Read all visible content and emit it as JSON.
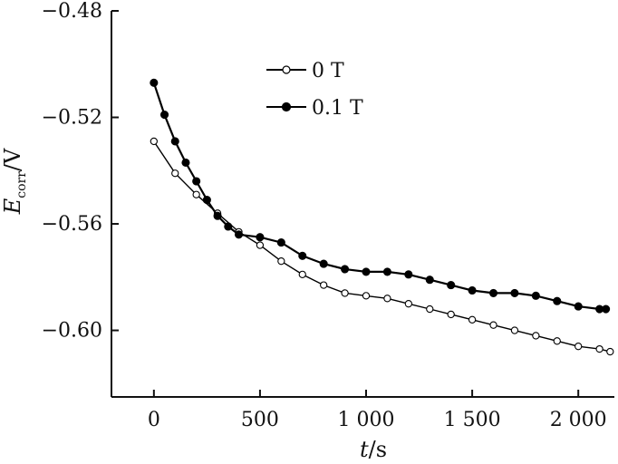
{
  "chart_data": {
    "type": "scatter",
    "xlabel": {
      "var": "t",
      "unit": "/s"
    },
    "ylabel": {
      "var": "E",
      "sub": "corr",
      "unit": "/V"
    },
    "xlim": [
      -200,
      2170
    ],
    "ylim": [
      -0.625,
      -0.48
    ],
    "xticks": [
      0,
      500,
      1000,
      1500,
      2000
    ],
    "xtick_labels": [
      "0",
      "500",
      "1 000",
      "1 500",
      "2 000"
    ],
    "yticks": [
      -0.48,
      -0.52,
      -0.56,
      -0.6
    ],
    "ytick_labels": [
      "−0.48",
      "−0.52",
      "−0.56",
      "−0.60"
    ],
    "grid": false,
    "legend_position": "top-center",
    "series": [
      {
        "name": "0 T",
        "marker": "open-circle",
        "color": "#000000",
        "x": [
          0,
          100,
          200,
          300,
          400,
          500,
          600,
          700,
          800,
          900,
          1000,
          1100,
          1200,
          1300,
          1400,
          1500,
          1600,
          1700,
          1800,
          1900,
          2000,
          2100,
          2150
        ],
        "y": [
          -0.529,
          -0.541,
          -0.549,
          -0.556,
          -0.563,
          -0.568,
          -0.574,
          -0.579,
          -0.583,
          -0.586,
          -0.587,
          -0.588,
          -0.59,
          -0.592,
          -0.594,
          -0.596,
          -0.598,
          -0.6,
          -0.602,
          -0.604,
          -0.606,
          -0.607,
          -0.608
        ]
      },
      {
        "name": "0.1 T",
        "marker": "filled-circle",
        "color": "#000000",
        "x": [
          0,
          50,
          100,
          150,
          200,
          250,
          300,
          350,
          400,
          500,
          600,
          700,
          800,
          900,
          1000,
          1100,
          1200,
          1300,
          1400,
          1500,
          1600,
          1700,
          1800,
          1900,
          2000,
          2100,
          2130
        ],
        "y": [
          -0.507,
          -0.519,
          -0.529,
          -0.537,
          -0.544,
          -0.551,
          -0.557,
          -0.561,
          -0.564,
          -0.565,
          -0.567,
          -0.572,
          -0.575,
          -0.577,
          -0.578,
          -0.578,
          -0.579,
          -0.581,
          -0.583,
          -0.585,
          -0.586,
          -0.586,
          -0.587,
          -0.589,
          -0.591,
          -0.592,
          -0.592
        ]
      }
    ]
  }
}
